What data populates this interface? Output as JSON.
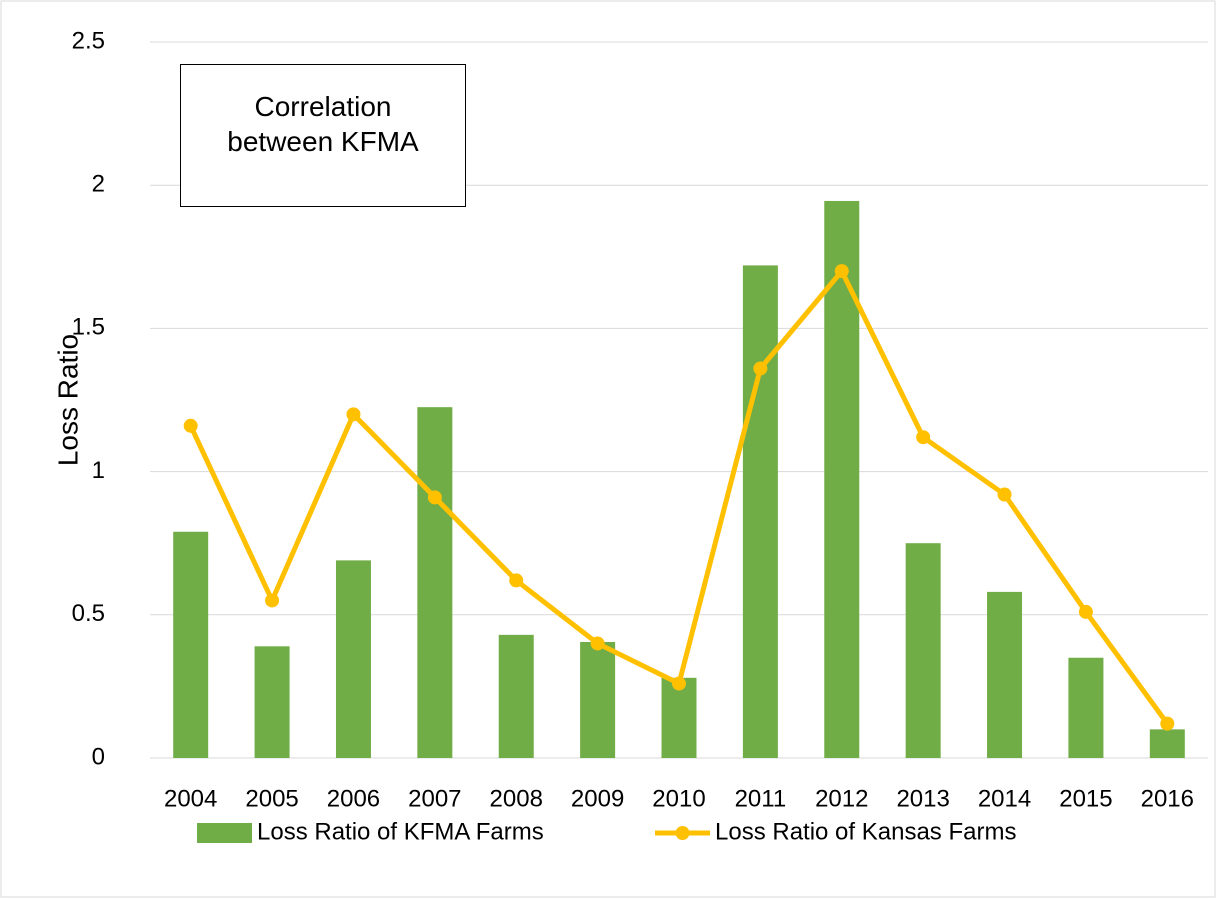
{
  "chart_data": {
    "type": "bar-line",
    "y_label": "Loss Ratio",
    "annotation": "Correlation between KFMA",
    "categories": [
      "2004",
      "2005",
      "2006",
      "2007",
      "2008",
      "2009",
      "2010",
      "2011",
      "2012",
      "2013",
      "2014",
      "2015",
      "2016"
    ],
    "series": [
      {
        "name": "Loss Ratio of KFMA Farms",
        "type": "bar",
        "color": "#70ad47",
        "values": [
          0.79,
          0.39,
          0.69,
          1.225,
          0.43,
          0.405,
          0.28,
          1.72,
          1.945,
          0.75,
          0.58,
          0.35,
          0.1
        ]
      },
      {
        "name": "Loss Ratio of Kansas Farms",
        "type": "line",
        "color": "#ffc000",
        "values": [
          1.16,
          0.55,
          1.2,
          0.91,
          0.62,
          0.4,
          0.26,
          1.36,
          1.7,
          1.12,
          0.92,
          0.51,
          0.12
        ]
      }
    ],
    "ylim": [
      0,
      2.5
    ],
    "yticks": [
      0,
      0.5,
      1,
      1.5,
      2,
      2.5
    ],
    "grid": true,
    "legend": "bottom"
  }
}
